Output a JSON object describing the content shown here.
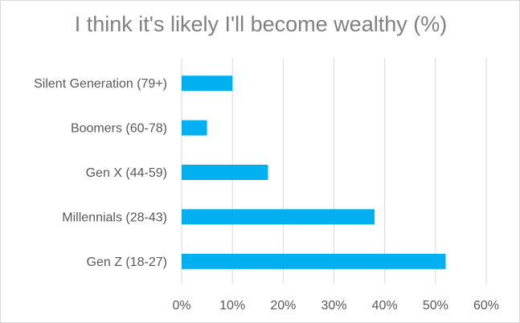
{
  "chart_data": {
    "type": "bar",
    "orientation": "horizontal",
    "title": "I think it's likely I'll become wealthy (%)",
    "categories": [
      "Silent Generation (79+)",
      "Boomers (60-78)",
      "Gen X (44-59)",
      "Millennials (28-43)",
      "Gen Z (18-27)"
    ],
    "values": [
      10,
      5,
      17,
      38,
      52
    ],
    "xlim": [
      0,
      60
    ],
    "x_ticks": [
      "0%",
      "10%",
      "20%",
      "30%",
      "40%",
      "50%",
      "60%"
    ],
    "grid": true,
    "legend": "none",
    "bar_color": "#00b0f0",
    "grid_color": "#d9d9d9"
  }
}
